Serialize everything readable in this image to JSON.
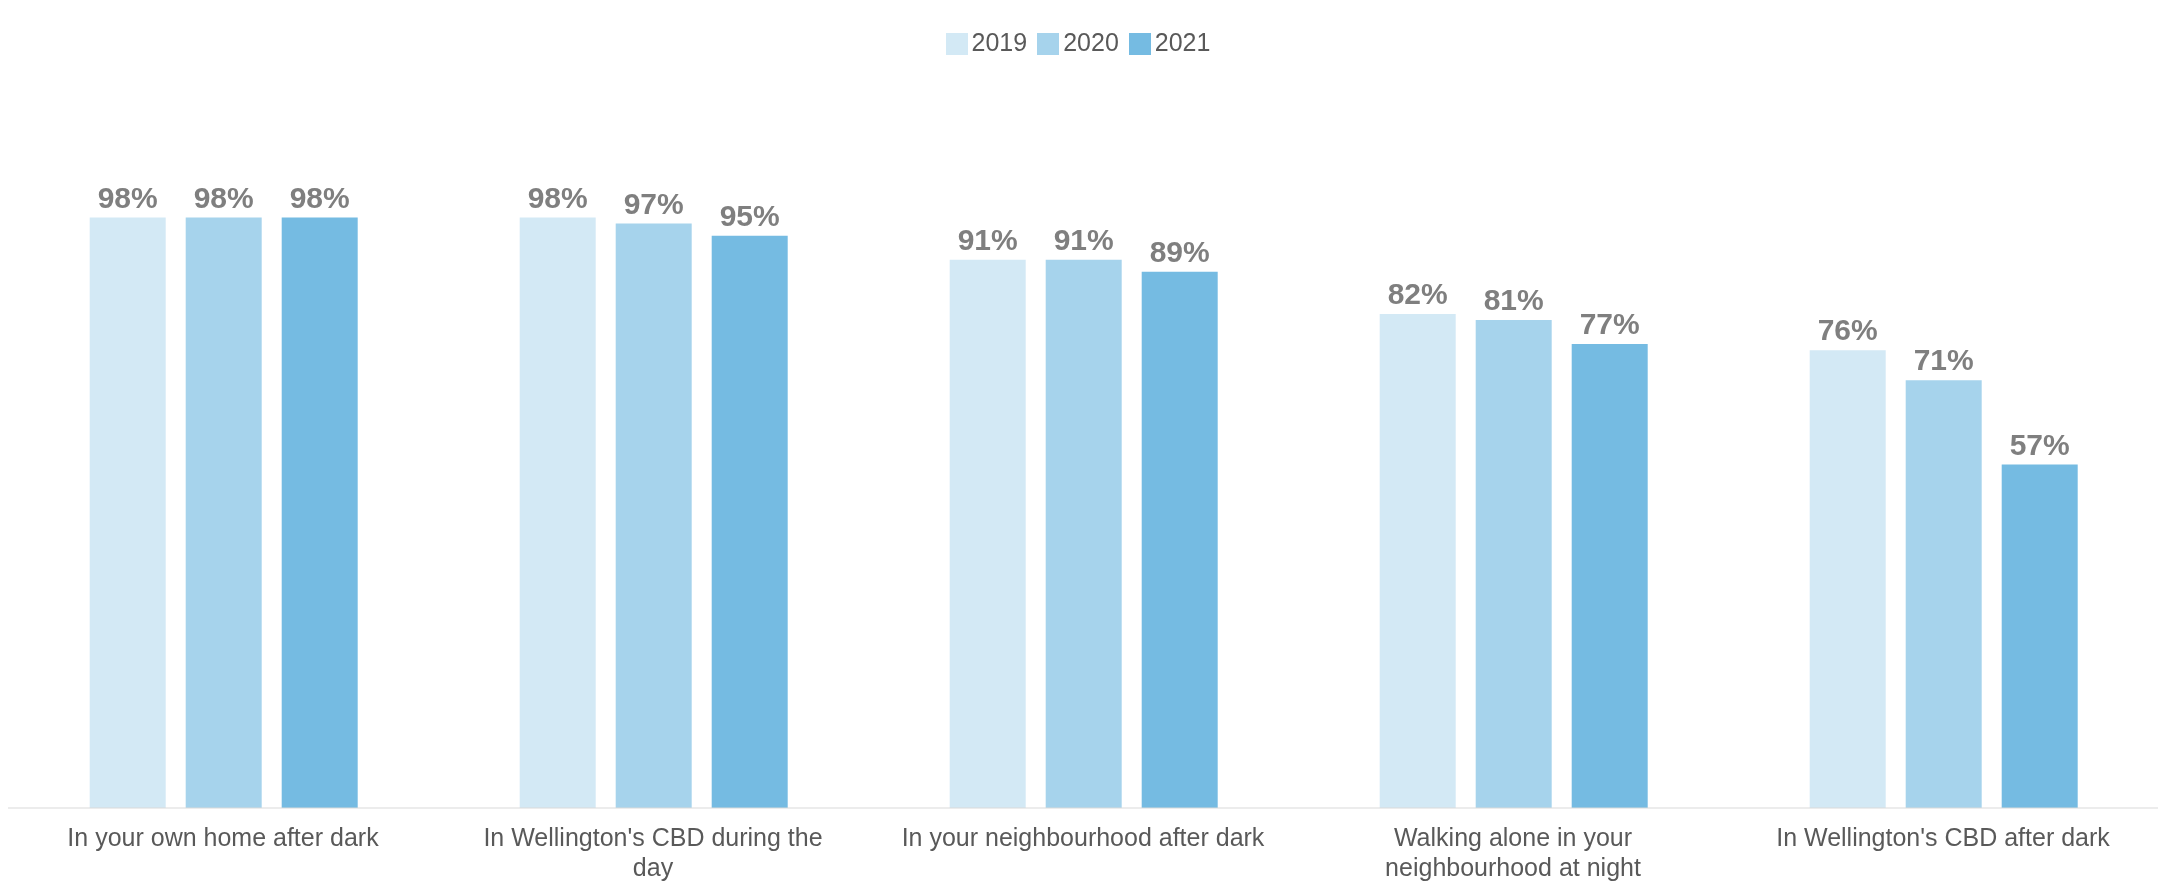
{
  "chart_data": {
    "type": "bar",
    "categories": [
      "In your own home after dark",
      "In Wellington's CBD during the day",
      "In your neighbourhood after dark",
      "Walking alone in your neighbourhood at night",
      "In Wellington's CBD after dark"
    ],
    "series": [
      {
        "name": "2019",
        "color": "#d3e9f5",
        "values": [
          98,
          98,
          91,
          82,
          76
        ],
        "value_labels": [
          "98%",
          "98%",
          "91%",
          "82%",
          "76%"
        ]
      },
      {
        "name": "2020",
        "color": "#a6d3ec",
        "values": [
          98,
          97,
          91,
          81,
          71
        ],
        "value_labels": [
          "98%",
          "97%",
          "91%",
          "81%",
          "71%"
        ]
      },
      {
        "name": "2021",
        "color": "#75bbe2",
        "values": [
          98,
          95,
          89,
          77,
          57
        ],
        "value_labels": [
          "98%",
          "95%",
          "89%",
          "77%",
          "57%"
        ]
      }
    ],
    "legend": "top"
  }
}
